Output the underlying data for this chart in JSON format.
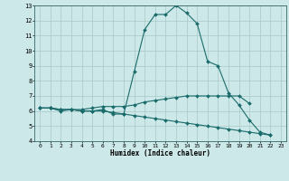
{
  "title": "",
  "xlabel": "Humidex (Indice chaleur)",
  "ylabel": "",
  "bg_color": "#cce8e8",
  "grid_color": "#aac8c8",
  "line_color": "#1a6b6b",
  "x_values": [
    0,
    1,
    2,
    3,
    4,
    5,
    6,
    7,
    8,
    9,
    10,
    11,
    12,
    13,
    14,
    15,
    16,
    17,
    18,
    19,
    20,
    21,
    22,
    23
  ],
  "line1": [
    6.2,
    6.2,
    6.0,
    6.1,
    6.0,
    6.0,
    6.1,
    5.8,
    5.8,
    8.6,
    11.4,
    12.4,
    12.4,
    13.0,
    12.5,
    11.8,
    9.3,
    9.0,
    7.2,
    6.4,
    5.4,
    4.6,
    4.4,
    null
  ],
  "line2": [
    6.2,
    6.2,
    6.1,
    6.1,
    6.1,
    6.2,
    6.3,
    6.3,
    6.3,
    6.4,
    6.6,
    6.7,
    6.8,
    6.9,
    7.0,
    7.0,
    7.0,
    7.0,
    7.0,
    7.0,
    6.5,
    null,
    null,
    null
  ],
  "line3": [
    6.2,
    6.2,
    6.1,
    6.1,
    6.0,
    6.0,
    6.0,
    5.9,
    5.8,
    5.7,
    5.6,
    5.5,
    5.4,
    5.3,
    5.2,
    5.1,
    5.0,
    4.9,
    4.8,
    4.7,
    4.6,
    4.5,
    4.4,
    null
  ],
  "ylim": [
    4,
    13
  ],
  "xlim": [
    -0.5,
    23.5
  ],
  "yticks": [
    4,
    5,
    6,
    7,
    8,
    9,
    10,
    11,
    12,
    13
  ],
  "xticks": [
    0,
    1,
    2,
    3,
    4,
    5,
    6,
    7,
    8,
    9,
    10,
    11,
    12,
    13,
    14,
    15,
    16,
    17,
    18,
    19,
    20,
    21,
    22,
    23
  ]
}
